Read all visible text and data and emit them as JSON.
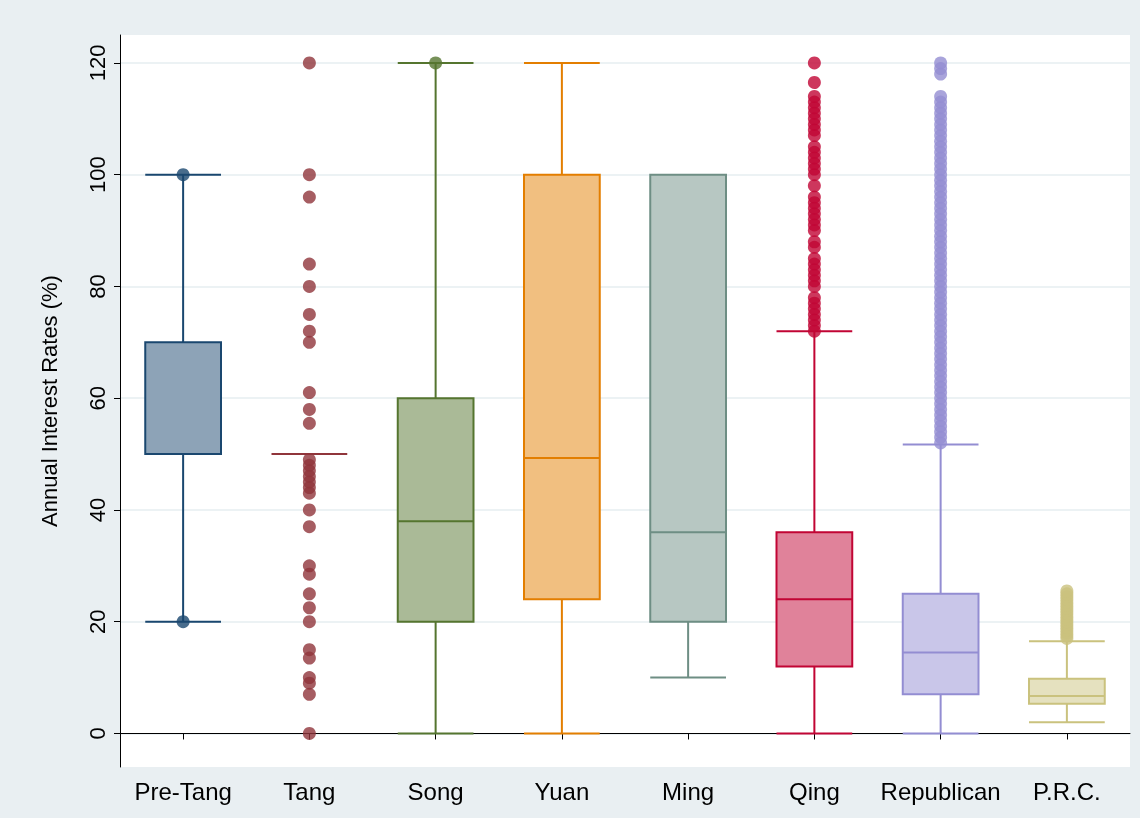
{
  "chart_data": {
    "type": "box",
    "ylabel": "Annual Interest Rates (%)",
    "categories": [
      "Pre-Tang",
      "Tang",
      "Song",
      "Yuan",
      "Ming",
      "Qing",
      "Republican",
      "P.R.C."
    ],
    "colors": [
      "#1a476f",
      "#90353b",
      "#55752f",
      "#e37e00",
      "#6e8e84",
      "#c10534",
      "#938dd2",
      "#cac27e"
    ],
    "boxes": [
      {
        "low": 20,
        "q1": 50,
        "median": 50,
        "q3": 70,
        "high": 100,
        "outliers": [
          20,
          100
        ]
      },
      {
        "low": 50,
        "q1": 50,
        "median": 50,
        "q3": 50,
        "high": 50,
        "outliers": [
          120,
          100,
          96,
          84,
          80,
          75,
          72,
          70,
          61,
          58,
          55.5,
          49,
          48,
          47,
          46,
          45,
          44,
          43,
          40,
          37,
          30,
          28.5,
          25,
          22.5,
          20,
          15,
          13.5,
          10,
          9,
          7,
          0
        ]
      },
      {
        "low": 0,
        "q1": 20,
        "median": 38,
        "q3": 60,
        "high": 120,
        "outliers": [
          120
        ]
      },
      {
        "low": 0,
        "q1": 24,
        "median": 49.3,
        "q3": 100,
        "high": 120
      },
      {
        "low": 10,
        "q1": 20,
        "median": 36,
        "q3": 100,
        "high": 100
      },
      {
        "low": 0,
        "q1": 12,
        "median": 24,
        "q3": 36,
        "high": 72,
        "outliers": [
          72,
          73,
          74,
          75,
          76,
          77,
          78,
          80,
          81,
          82,
          83,
          84,
          85,
          87,
          88,
          90,
          91,
          92,
          93,
          94,
          95,
          96,
          98,
          100,
          101,
          102,
          103,
          104,
          105,
          107,
          108,
          109,
          110,
          111,
          112,
          113,
          114,
          116.5,
          120
        ]
      },
      {
        "low": 0,
        "q1": 7,
        "median": 14.5,
        "q3": 25,
        "high": 51.7,
        "outliers": [
          52,
          53,
          54,
          55,
          56,
          57,
          58,
          59,
          60,
          61,
          62,
          63,
          64,
          65,
          66,
          67,
          68,
          69,
          70,
          71,
          72,
          73,
          74,
          75,
          76,
          77,
          78,
          79,
          80,
          81,
          82,
          83,
          84,
          85,
          86,
          87,
          88,
          89,
          90,
          91,
          92,
          93,
          94,
          95,
          96,
          97,
          98,
          99,
          100,
          101,
          102,
          103,
          104,
          105,
          106,
          107,
          108,
          109,
          110,
          111,
          112,
          113,
          114,
          118,
          119,
          120
        ]
      },
      {
        "low": 2,
        "q1": 5.3,
        "median": 6.7,
        "q3": 9.8,
        "high": 16.5,
        "outliers": [
          17,
          17.5,
          18,
          18.5,
          19,
          19.5,
          20,
          20.5,
          21,
          21.5,
          22,
          22.5,
          23,
          23.5,
          24,
          24.5,
          25,
          25.5
        ]
      }
    ],
    "ylim": [
      -6,
      125
    ],
    "yticks": [
      0,
      20,
      40,
      60,
      80,
      100,
      120
    ],
    "grid": "y",
    "marker": "circle"
  }
}
